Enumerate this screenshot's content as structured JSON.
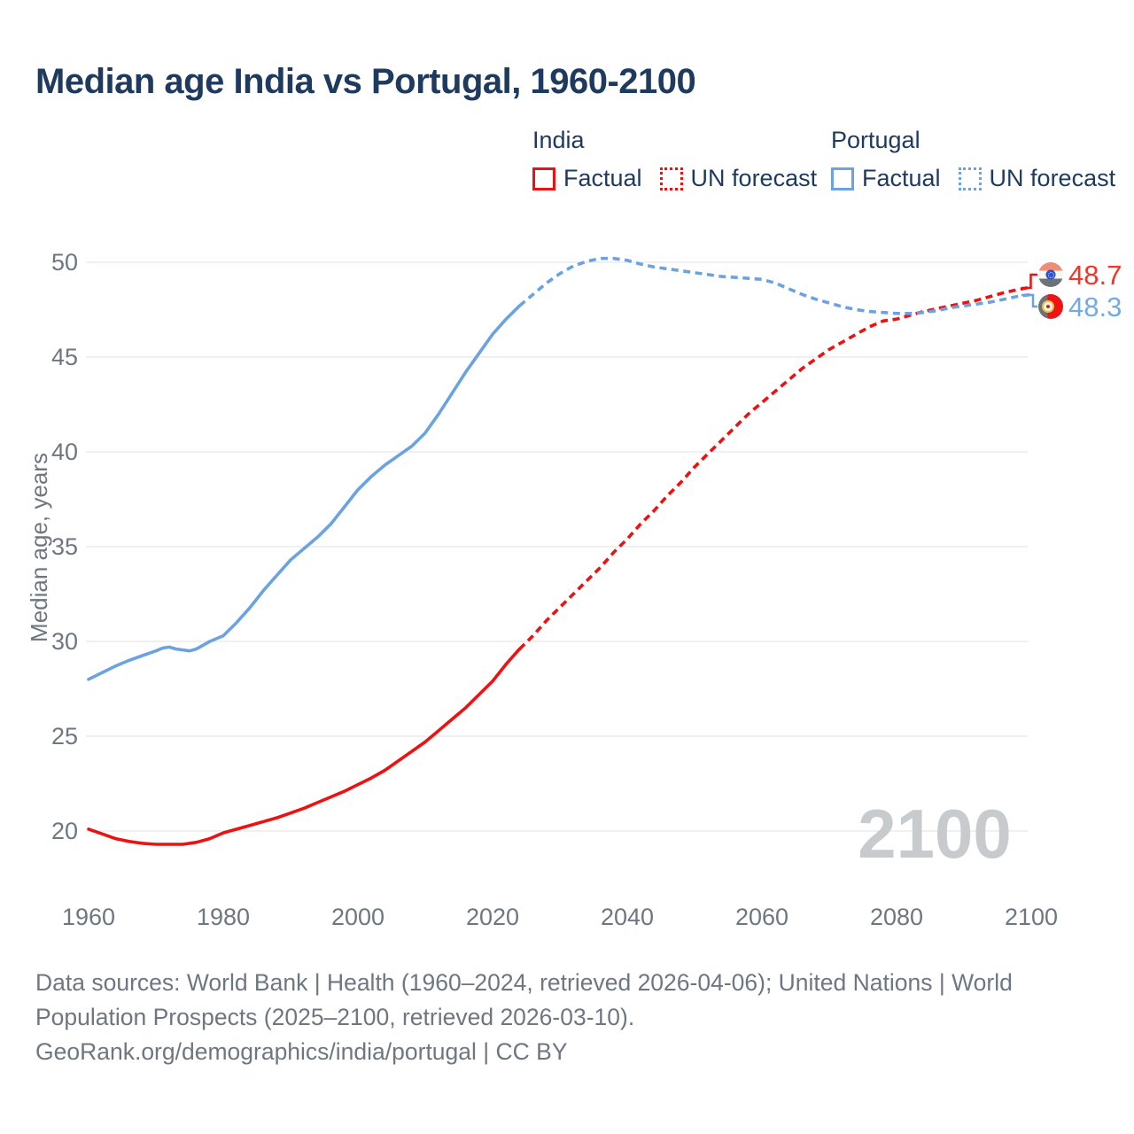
{
  "page": {
    "title": "Median age India vs Portugal, 1960-2100"
  },
  "legend": {
    "groups": [
      {
        "name": "India",
        "color": "#ee1111",
        "items": [
          {
            "label": "Factual",
            "line_style": "solid"
          },
          {
            "label": "UN forecast",
            "line_style": "dotted"
          }
        ]
      },
      {
        "name": "Portugal",
        "color": "#6ba3e2",
        "items": [
          {
            "label": "Factual",
            "line_style": "solid"
          },
          {
            "label": "UN forecast",
            "line_style": "dotted"
          }
        ]
      }
    ]
  },
  "y_axis_title": "Median age, years",
  "watermark": "2100",
  "end_labels": [
    {
      "country": "India",
      "value": "48.7",
      "color": "#f23527",
      "flag": "india-flag-icon"
    },
    {
      "country": "Portugal",
      "value": "48.3",
      "color": "#74aae3",
      "flag": "portugal-flag-icon"
    }
  ],
  "footer": {
    "lines": [
      "Data sources: World Bank | Health (1960–2024, retrieved 2026-04-06); United Nations | World",
      "Population Prospects (2025–2100, retrieved 2026-03-10).",
      "GeoRank.org/demographics/india/portugal | CC BY"
    ]
  },
  "chart_data": {
    "type": "line",
    "title": "Median age India vs Portugal, 1960-2100",
    "xlabel": "",
    "ylabel": "Median age, years",
    "xlim": [
      1960,
      2100
    ],
    "ylim": [
      20,
      50
    ],
    "x_ticks": [
      1960,
      1980,
      2000,
      2020,
      2040,
      2060,
      2080,
      2100
    ],
    "y_ticks": [
      20,
      25,
      30,
      35,
      40,
      45,
      50
    ],
    "grid": "horizontal",
    "legend_position": "top-right",
    "gridline_color": "#e9ebee",
    "tick_color": "#6e7781",
    "series": [
      {
        "name": "India factual",
        "color": "#ee1111",
        "line_style": "solid",
        "points": [
          [
            1960,
            20.1
          ],
          [
            1962,
            19.85
          ],
          [
            1964,
            19.6
          ],
          [
            1966,
            19.45
          ],
          [
            1968,
            19.35
          ],
          [
            1970,
            19.3
          ],
          [
            1972,
            19.3
          ],
          [
            1974,
            19.3
          ],
          [
            1976,
            19.4
          ],
          [
            1978,
            19.6
          ],
          [
            1980,
            19.9
          ],
          [
            1982,
            20.1
          ],
          [
            1984,
            20.3
          ],
          [
            1986,
            20.5
          ],
          [
            1988,
            20.7
          ],
          [
            1990,
            20.95
          ],
          [
            1992,
            21.2
          ],
          [
            1994,
            21.5
          ],
          [
            1996,
            21.8
          ],
          [
            1998,
            22.1
          ],
          [
            2000,
            22.45
          ],
          [
            2002,
            22.8
          ],
          [
            2004,
            23.2
          ],
          [
            2006,
            23.7
          ],
          [
            2008,
            24.2
          ],
          [
            2010,
            24.7
          ],
          [
            2012,
            25.3
          ],
          [
            2014,
            25.9
          ],
          [
            2016,
            26.5
          ],
          [
            2018,
            27.2
          ],
          [
            2020,
            27.9
          ],
          [
            2022,
            28.8
          ],
          [
            2024,
            29.6
          ]
        ]
      },
      {
        "name": "India UN forecast",
        "color": "#ee1111",
        "line_style": "dashed",
        "points": [
          [
            2024,
            29.6
          ],
          [
            2026,
            30.3
          ],
          [
            2028,
            31.1
          ],
          [
            2030,
            31.8
          ],
          [
            2032,
            32.5
          ],
          [
            2034,
            33.2
          ],
          [
            2036,
            33.9
          ],
          [
            2038,
            34.7
          ],
          [
            2040,
            35.4
          ],
          [
            2042,
            36.2
          ],
          [
            2044,
            36.9
          ],
          [
            2046,
            37.7
          ],
          [
            2048,
            38.4
          ],
          [
            2050,
            39.2
          ],
          [
            2052,
            39.9
          ],
          [
            2054,
            40.6
          ],
          [
            2056,
            41.3
          ],
          [
            2058,
            42.0
          ],
          [
            2060,
            42.6
          ],
          [
            2062,
            43.2
          ],
          [
            2064,
            43.8
          ],
          [
            2066,
            44.4
          ],
          [
            2068,
            44.9
          ],
          [
            2070,
            45.4
          ],
          [
            2072,
            45.8
          ],
          [
            2074,
            46.2
          ],
          [
            2076,
            46.6
          ],
          [
            2078,
            46.9
          ],
          [
            2080,
            47.0
          ],
          [
            2082,
            47.2
          ],
          [
            2084,
            47.4
          ],
          [
            2086,
            47.55
          ],
          [
            2088,
            47.7
          ],
          [
            2090,
            47.85
          ],
          [
            2092,
            48.0
          ],
          [
            2094,
            48.2
          ],
          [
            2096,
            48.4
          ],
          [
            2098,
            48.55
          ],
          [
            2100,
            48.7
          ]
        ]
      },
      {
        "name": "Portugal factual",
        "color": "#6ba3e2",
        "line_style": "solid",
        "points": [
          [
            1960,
            28.0
          ],
          [
            1962,
            28.35
          ],
          [
            1964,
            28.7
          ],
          [
            1966,
            29.0
          ],
          [
            1968,
            29.25
          ],
          [
            1970,
            29.5
          ],
          [
            1971,
            29.65
          ],
          [
            1972,
            29.7
          ],
          [
            1973,
            29.6
          ],
          [
            1974,
            29.55
          ],
          [
            1975,
            29.5
          ],
          [
            1976,
            29.6
          ],
          [
            1977,
            29.8
          ],
          [
            1978,
            30.0
          ],
          [
            1980,
            30.3
          ],
          [
            1982,
            31.0
          ],
          [
            1984,
            31.8
          ],
          [
            1986,
            32.7
          ],
          [
            1988,
            33.5
          ],
          [
            1990,
            34.3
          ],
          [
            1992,
            34.9
          ],
          [
            1994,
            35.5
          ],
          [
            1996,
            36.2
          ],
          [
            1998,
            37.1
          ],
          [
            2000,
            38.0
          ],
          [
            2002,
            38.7
          ],
          [
            2004,
            39.3
          ],
          [
            2006,
            39.8
          ],
          [
            2008,
            40.3
          ],
          [
            2010,
            41.0
          ],
          [
            2012,
            42.0
          ],
          [
            2014,
            43.1
          ],
          [
            2016,
            44.2
          ],
          [
            2018,
            45.2
          ],
          [
            2020,
            46.2
          ],
          [
            2022,
            47.0
          ],
          [
            2024,
            47.7
          ]
        ]
      },
      {
        "name": "Portugal UN forecast",
        "color": "#6ba3e2",
        "line_style": "dashed",
        "points": [
          [
            2024,
            47.7
          ],
          [
            2026,
            48.3
          ],
          [
            2028,
            48.9
          ],
          [
            2030,
            49.4
          ],
          [
            2032,
            49.8
          ],
          [
            2034,
            50.05
          ],
          [
            2036,
            50.2
          ],
          [
            2038,
            50.2
          ],
          [
            2040,
            50.1
          ],
          [
            2042,
            49.9
          ],
          [
            2044,
            49.75
          ],
          [
            2046,
            49.65
          ],
          [
            2048,
            49.55
          ],
          [
            2050,
            49.45
          ],
          [
            2052,
            49.35
          ],
          [
            2054,
            49.25
          ],
          [
            2056,
            49.2
          ],
          [
            2058,
            49.15
          ],
          [
            2060,
            49.1
          ],
          [
            2062,
            48.9
          ],
          [
            2064,
            48.6
          ],
          [
            2066,
            48.3
          ],
          [
            2068,
            48.05
          ],
          [
            2070,
            47.85
          ],
          [
            2072,
            47.65
          ],
          [
            2074,
            47.5
          ],
          [
            2076,
            47.4
          ],
          [
            2078,
            47.35
          ],
          [
            2080,
            47.3
          ],
          [
            2082,
            47.3
          ],
          [
            2084,
            47.35
          ],
          [
            2086,
            47.45
          ],
          [
            2088,
            47.6
          ],
          [
            2090,
            47.7
          ],
          [
            2092,
            47.8
          ],
          [
            2094,
            47.9
          ],
          [
            2096,
            48.05
          ],
          [
            2098,
            48.2
          ],
          [
            2100,
            48.3
          ]
        ]
      }
    ]
  }
}
